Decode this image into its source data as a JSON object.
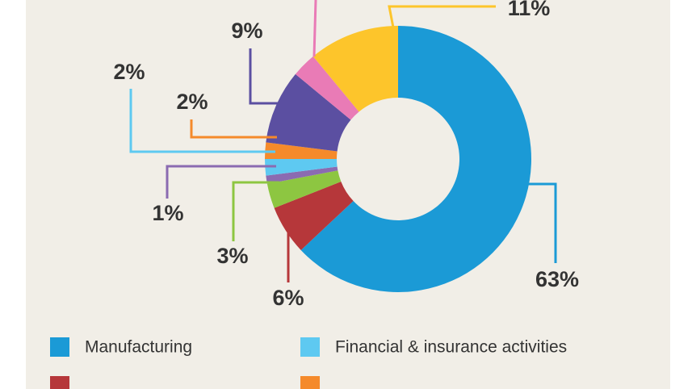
{
  "chart_data": {
    "type": "donut",
    "categories": [
      "Manufacturing",
      null,
      null,
      null,
      "Financial & insurance activities",
      null,
      null,
      null,
      null
    ],
    "values": [
      63,
      6,
      3,
      1,
      2,
      2,
      9,
      3,
      11
    ],
    "value_labels": [
      "63%",
      "6%",
      "3%",
      "1%",
      "2%",
      "2%",
      "9%",
      null,
      "11%"
    ],
    "colors": [
      "#1b9ad6",
      "#b6373a",
      "#8dc641",
      "#8b6bb1",
      "#5ec9f1",
      "#f58a2b",
      "#5b4fa1",
      "#e97bb6",
      "#fdc52b"
    ]
  }
}
